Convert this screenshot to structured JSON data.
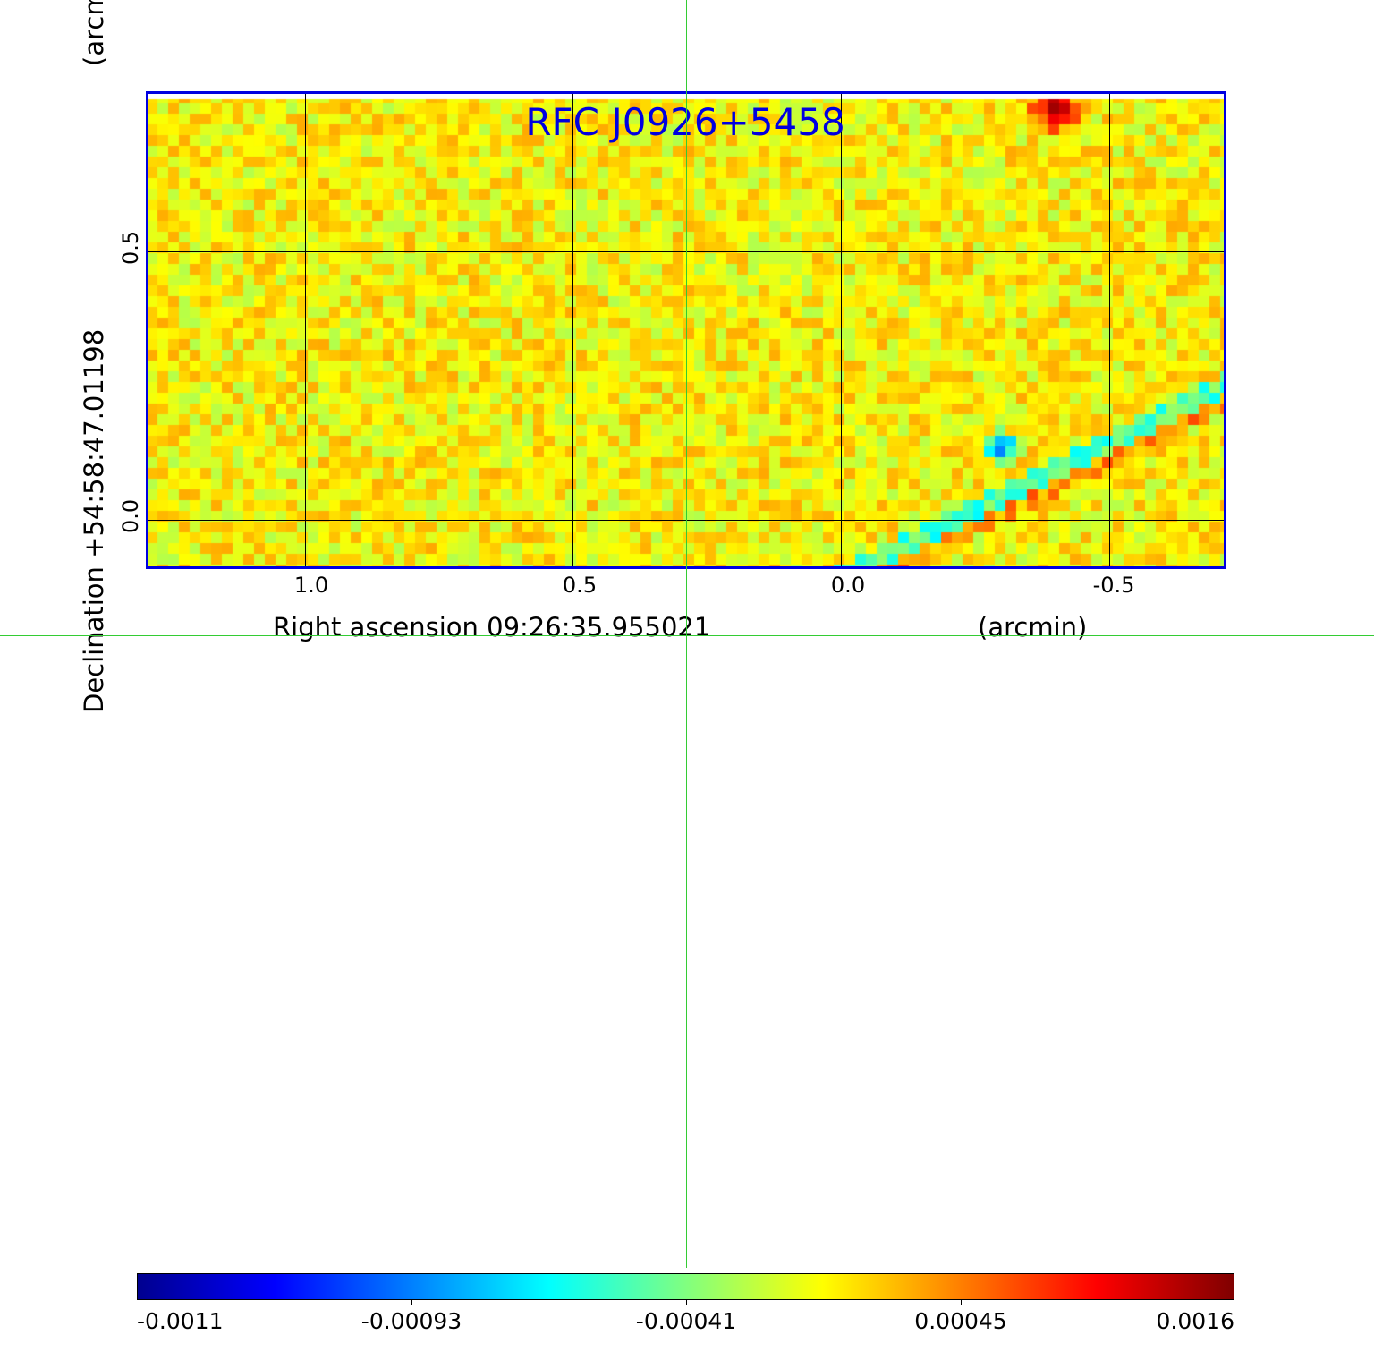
{
  "chart_data": {
    "type": "heatmap",
    "title": "RFC J0926+5458",
    "xlabel": "Right ascension  09:26:35.955021",
    "xlabel_unit": "(arcmin)",
    "ylabel": "Declination  +54:58:47.01198",
    "ylabel_unit": "(arcmin)",
    "x_ticks": [
      "1.0",
      "0.5",
      "0.0",
      "-0.5"
    ],
    "x_tick_values": [
      1.0,
      0.5,
      0.0,
      -0.5
    ],
    "xlim": [
      1.3,
      -0.71
    ],
    "y_ticks": [
      "0.5",
      "0.0"
    ],
    "y_tick_values": [
      0.5,
      0.0
    ],
    "ylim": [
      -0.09,
      0.8
    ],
    "grid": true,
    "colormap": "jet",
    "colorbar": {
      "ticks": [
        "-0.0011",
        "-0.00093",
        "-0.00041",
        "0.00045",
        "0.0016"
      ],
      "range": [
        -0.0011,
        0.0016
      ],
      "position": "bottom"
    },
    "features": [
      {
        "kind": "peak",
        "value": 0.0016,
        "x_arcmin": -0.39,
        "y_arcmin": 0.77
      },
      {
        "kind": "trough",
        "value": -0.0011,
        "x_arcmin": -0.3,
        "y_arcmin": 0.15
      }
    ]
  },
  "colors": {
    "frame": "#0000e0",
    "title": "#0000e0",
    "crosshair": "#33cc33"
  }
}
